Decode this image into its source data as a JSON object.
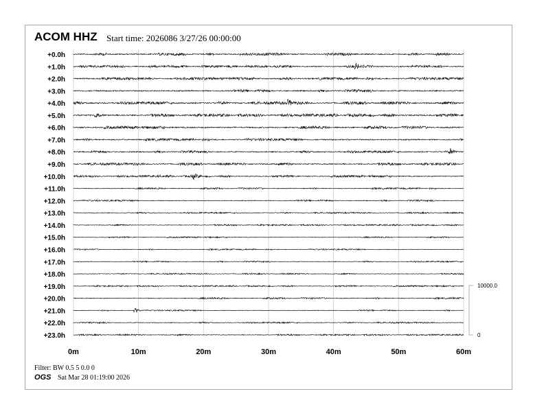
{
  "header": {
    "station": "ACOM HHZ",
    "start_time": "Start time: 2026086  3/27/26 00:00:00"
  },
  "footer": {
    "filter": "Filter: BW 0.5 5 0.0 0",
    "org": "OGS",
    "generated": "Sat Mar 28 01:19:00 2026"
  },
  "chart_data": {
    "type": "line",
    "subtype": "helicorder",
    "row_labels": [
      "+0.0h",
      "+1.0h",
      "+2.0h",
      "+3.0h",
      "+4.0h",
      "+5.0h",
      "+6.0h",
      "+7.0h",
      "+8.0h",
      "+9.0h",
      "+10.0h",
      "+11.0h",
      "+12.0h",
      "+13.0h",
      "+14.0h",
      "+15.0h",
      "+16.0h",
      "+17.0h",
      "+18.0h",
      "+19.0h",
      "+20.0h",
      "+21.0h",
      "+22.0h",
      "+23.0h"
    ],
    "x_ticks": [
      "0m",
      "10m",
      "20m",
      "30m",
      "40m",
      "50m",
      "60m"
    ],
    "xlim": [
      0,
      60
    ],
    "grid": true,
    "scale_bar": {
      "top_label": "10000.0",
      "bottom_label": "0"
    },
    "noise_level_relative": [
      0.9,
      0.8,
      0.9,
      0.9,
      1.0,
      1.0,
      0.95,
      0.85,
      0.8,
      0.85,
      0.7,
      0.55,
      0.55,
      0.5,
      0.5,
      0.45,
      0.45,
      0.45,
      0.45,
      0.5,
      0.55,
      0.45,
      0.5,
      0.5
    ],
    "events": [
      {
        "row": "+1.0h",
        "minute": 43.5
      },
      {
        "row": "+4.0h",
        "minute": 33
      },
      {
        "row": "+5.0h",
        "minute": 3.5
      },
      {
        "row": "+8.0h",
        "minute": 58
      },
      {
        "row": "+10.0h",
        "minute": 18.5
      },
      {
        "row": "+21.0h",
        "minute": 9.5
      }
    ],
    "trace_color": "#000000",
    "grid_color": "#cccccc"
  }
}
